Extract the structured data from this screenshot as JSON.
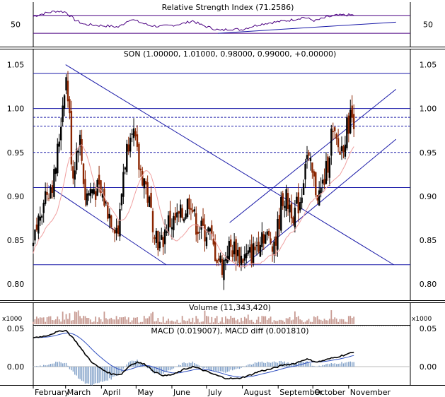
{
  "panels": {
    "rsi": {
      "title": "Relative Strength Index (71.2586)",
      "ticks": [
        {
          "v": 50,
          "label": "50"
        }
      ],
      "ylim": [
        0,
        100
      ],
      "levels": [
        30,
        70
      ]
    },
    "price": {
      "title": "SON (1.00000, 1.01000, 0.98000, 0.99000, +0.00000)",
      "ticks": [
        {
          "v": 1.05,
          "label": "1.05"
        },
        {
          "v": 1.0,
          "label": "1.00"
        },
        {
          "v": 0.95,
          "label": "0.95"
        },
        {
          "v": 0.9,
          "label": "0.90"
        },
        {
          "v": 0.85,
          "label": "0.85"
        },
        {
          "v": 0.8,
          "label": "0.80"
        }
      ],
      "ylim": [
        0.79,
        1.067
      ],
      "h_lines": [
        1.04,
        1.0,
        0.91,
        0.822
      ],
      "dashed_lines": [
        0.99,
        0.98,
        0.95
      ]
    },
    "volume": {
      "title": "Volume (11,343,420)",
      "unit_label": "x1000"
    },
    "macd": {
      "title": "MACD (0.019007), MACD diff (0.001810)",
      "ticks": [
        {
          "v": 0.05,
          "label": "0.05"
        },
        {
          "v": 0.0,
          "label": "0.00"
        }
      ],
      "ylim": [
        -0.02,
        0.06
      ]
    }
  },
  "x_axis": {
    "labels": [
      {
        "label": "February",
        "day": 0
      },
      {
        "label": "March",
        "day": 28
      },
      {
        "label": "April",
        "day": 59
      },
      {
        "label": "May",
        "day": 89
      },
      {
        "label": "June",
        "day": 120
      },
      {
        "label": "July",
        "day": 150
      },
      {
        "label": "August",
        "day": 181
      },
      {
        "label": "September",
        "day": 212
      },
      {
        "label": "October",
        "day": 242
      },
      {
        "label": "November",
        "day": 273
      }
    ]
  },
  "chart_data": {
    "type": "line",
    "x_unit": "days since 1 February",
    "price_anchors": [
      {
        "day": 0,
        "close": 0.84
      },
      {
        "day": 4,
        "close": 0.87
      },
      {
        "day": 9,
        "close": 0.9
      },
      {
        "day": 14,
        "close": 0.91
      },
      {
        "day": 18,
        "close": 0.92
      },
      {
        "day": 22,
        "close": 0.96
      },
      {
        "day": 25,
        "close": 1.0
      },
      {
        "day": 28,
        "close": 1.04
      },
      {
        "day": 31,
        "close": 1.0
      },
      {
        "day": 34,
        "close": 0.92
      },
      {
        "day": 37,
        "close": 0.95
      },
      {
        "day": 40,
        "close": 0.97
      },
      {
        "day": 45,
        "close": 0.9
      },
      {
        "day": 52,
        "close": 0.91
      },
      {
        "day": 60,
        "close": 0.9
      },
      {
        "day": 66,
        "close": 0.88
      },
      {
        "day": 70,
        "close": 0.87
      },
      {
        "day": 74,
        "close": 0.86
      },
      {
        "day": 78,
        "close": 0.93
      },
      {
        "day": 82,
        "close": 0.96
      },
      {
        "day": 85,
        "close": 0.99
      },
      {
        "day": 88,
        "close": 0.96
      },
      {
        "day": 92,
        "close": 0.93
      },
      {
        "day": 96,
        "close": 0.92
      },
      {
        "day": 102,
        "close": 0.88
      },
      {
        "day": 106,
        "close": 0.86
      },
      {
        "day": 110,
        "close": 0.84
      },
      {
        "day": 116,
        "close": 0.87
      },
      {
        "day": 122,
        "close": 0.87
      },
      {
        "day": 130,
        "close": 0.88
      },
      {
        "day": 136,
        "close": 0.9
      },
      {
        "day": 140,
        "close": 0.87
      },
      {
        "day": 146,
        "close": 0.86
      },
      {
        "day": 152,
        "close": 0.86
      },
      {
        "day": 156,
        "close": 0.84
      },
      {
        "day": 160,
        "close": 0.83
      },
      {
        "day": 164,
        "close": 0.82
      },
      {
        "day": 168,
        "close": 0.84
      },
      {
        "day": 174,
        "close": 0.84
      },
      {
        "day": 180,
        "close": 0.83
      },
      {
        "day": 186,
        "close": 0.83
      },
      {
        "day": 192,
        "close": 0.84
      },
      {
        "day": 198,
        "close": 0.86
      },
      {
        "day": 204,
        "close": 0.85
      },
      {
        "day": 210,
        "close": 0.85
      },
      {
        "day": 216,
        "close": 0.9
      },
      {
        "day": 222,
        "close": 0.89
      },
      {
        "day": 226,
        "close": 0.88
      },
      {
        "day": 232,
        "close": 0.9
      },
      {
        "day": 236,
        "close": 0.95
      },
      {
        "day": 240,
        "close": 0.93
      },
      {
        "day": 244,
        "close": 0.91
      },
      {
        "day": 248,
        "close": 0.9
      },
      {
        "day": 254,
        "close": 0.93
      },
      {
        "day": 258,
        "close": 0.97
      },
      {
        "day": 262,
        "close": 0.96
      },
      {
        "day": 266,
        "close": 0.95
      },
      {
        "day": 270,
        "close": 0.97
      },
      {
        "day": 274,
        "close": 0.99
      },
      {
        "day": 278,
        "close": 0.99
      }
    ],
    "trend_lines": [
      {
        "from": [
          28,
          1.05
        ],
        "to": [
          312,
          0.822
        ]
      },
      {
        "from": [
          13,
          0.912
        ],
        "to": [
          115,
          0.822
        ]
      },
      {
        "from": [
          183,
          0.822
        ],
        "to": [
          314,
          0.965
        ]
      },
      {
        "from": [
          170,
          0.87
        ],
        "to": [
          314,
          1.022
        ]
      }
    ],
    "rsi_anchors": [
      {
        "day": 0,
        "v": 68
      },
      {
        "day": 10,
        "v": 75
      },
      {
        "day": 20,
        "v": 80
      },
      {
        "day": 28,
        "v": 78
      },
      {
        "day": 36,
        "v": 60
      },
      {
        "day": 44,
        "v": 50
      },
      {
        "day": 55,
        "v": 48
      },
      {
        "day": 66,
        "v": 46
      },
      {
        "day": 74,
        "v": 44
      },
      {
        "day": 84,
        "v": 62
      },
      {
        "day": 92,
        "v": 55
      },
      {
        "day": 100,
        "v": 48
      },
      {
        "day": 110,
        "v": 45
      },
      {
        "day": 120,
        "v": 48
      },
      {
        "day": 130,
        "v": 52
      },
      {
        "day": 138,
        "v": 58
      },
      {
        "day": 146,
        "v": 48
      },
      {
        "day": 154,
        "v": 42
      },
      {
        "day": 162,
        "v": 36
      },
      {
        "day": 170,
        "v": 40
      },
      {
        "day": 180,
        "v": 38
      },
      {
        "day": 190,
        "v": 46
      },
      {
        "day": 200,
        "v": 52
      },
      {
        "day": 212,
        "v": 56
      },
      {
        "day": 224,
        "v": 60
      },
      {
        "day": 234,
        "v": 66
      },
      {
        "day": 244,
        "v": 58
      },
      {
        "day": 254,
        "v": 66
      },
      {
        "day": 262,
        "v": 70
      },
      {
        "day": 270,
        "v": 71
      },
      {
        "day": 278,
        "v": 71
      }
    ],
    "rsi_trend_line": {
      "from": [
        160,
        30
      ],
      "to": [
        314,
        55
      ]
    },
    "macd_anchors": [
      {
        "day": 0,
        "v": 0.038
      },
      {
        "day": 10,
        "v": 0.04
      },
      {
        "day": 20,
        "v": 0.045
      },
      {
        "day": 28,
        "v": 0.048
      },
      {
        "day": 36,
        "v": 0.035
      },
      {
        "day": 44,
        "v": 0.018
      },
      {
        "day": 52,
        "v": 0.004
      },
      {
        "day": 60,
        "v": -0.004
      },
      {
        "day": 68,
        "v": -0.01
      },
      {
        "day": 76,
        "v": -0.01
      },
      {
        "day": 84,
        "v": 0.002
      },
      {
        "day": 90,
        "v": 0.006
      },
      {
        "day": 98,
        "v": 0.002
      },
      {
        "day": 106,
        "v": -0.008
      },
      {
        "day": 114,
        "v": -0.012
      },
      {
        "day": 122,
        "v": -0.01
      },
      {
        "day": 130,
        "v": -0.004
      },
      {
        "day": 138,
        "v": 0.0
      },
      {
        "day": 146,
        "v": -0.004
      },
      {
        "day": 156,
        "v": -0.01
      },
      {
        "day": 166,
        "v": -0.015
      },
      {
        "day": 176,
        "v": -0.016
      },
      {
        "day": 186,
        "v": -0.012
      },
      {
        "day": 196,
        "v": -0.006
      },
      {
        "day": 206,
        "v": -0.003
      },
      {
        "day": 216,
        "v": 0.002
      },
      {
        "day": 226,
        "v": 0.004
      },
      {
        "day": 236,
        "v": 0.01
      },
      {
        "day": 246,
        "v": 0.006
      },
      {
        "day": 256,
        "v": 0.01
      },
      {
        "day": 266,
        "v": 0.014
      },
      {
        "day": 278,
        "v": 0.019
      }
    ]
  },
  "colors": {
    "up_candle": "#000000",
    "down_candle": "#8b2500",
    "trend": "#1a1aa8",
    "rsi_line": "#4b0082",
    "moving_average": "#f0a0a0",
    "volume": "#c89a92",
    "macd_line": "#000000",
    "signal_line": "#3050c0",
    "histogram": "#7f9fc7"
  }
}
